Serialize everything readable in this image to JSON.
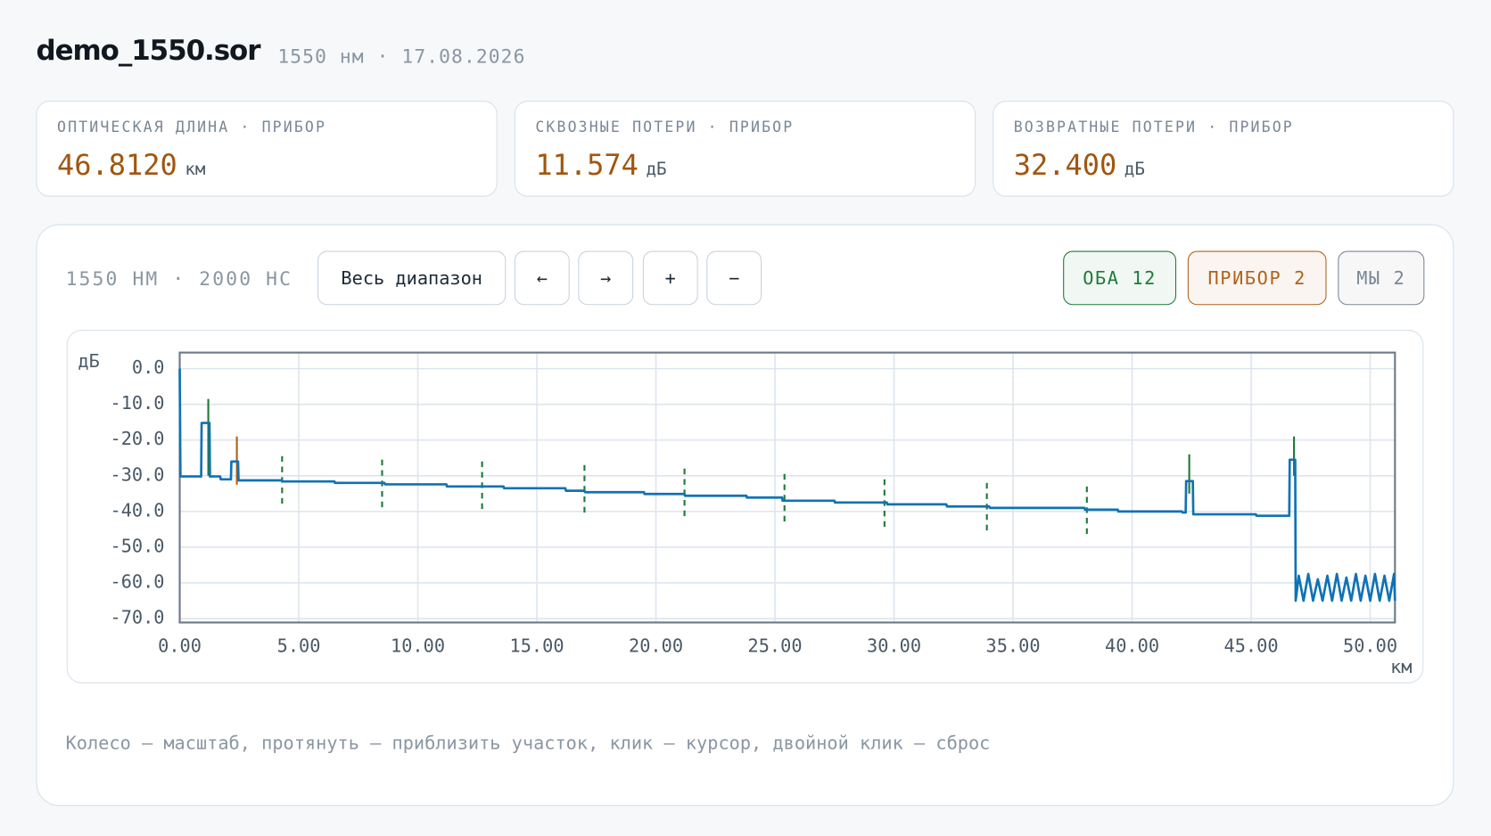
{
  "header": {
    "title": "demo_1550.sor",
    "subtitle": "1550 нм · 17.08.2026"
  },
  "metrics": [
    {
      "label": "ОПТИЧЕСКАЯ ДЛИНА · ПРИБОР",
      "value": "46.8120",
      "unit": "км"
    },
    {
      "label": "СКВОЗНЫЕ ПОТЕРИ · ПРИБОР",
      "value": "11.574",
      "unit": "дБ"
    },
    {
      "label": "ВОЗВРАТНЫЕ ПОТЕРИ · ПРИБОР",
      "value": "32.400",
      "unit": "дБ"
    }
  ],
  "toolbar": {
    "info": "1550 НМ · 2000 НС",
    "buttons": [
      "Весь диапазон",
      "←",
      "→",
      "+",
      "−"
    ],
    "filters": [
      {
        "label": "ОБА 12",
        "color": "#1f7a3a"
      },
      {
        "label": "ПРИБОР 2",
        "color": "#b0621a"
      },
      {
        "label": "МЫ 2",
        "color": "#7a8796"
      }
    ]
  },
  "chart_data": {
    "type": "line",
    "y_label": "дБ",
    "x_label": "км",
    "xlim": [
      0,
      51.04
    ],
    "ylim": [
      -71.1,
      4.5
    ],
    "grid": true,
    "xticks": [
      {
        "value": 0,
        "label": "0.00"
      },
      {
        "value": 5,
        "label": "5.00"
      },
      {
        "value": 10,
        "label": "10.00"
      },
      {
        "value": 15,
        "label": "15.00"
      },
      {
        "value": 20,
        "label": "20.00"
      },
      {
        "value": 25,
        "label": "25.00"
      },
      {
        "value": 30,
        "label": "30.00"
      },
      {
        "value": 35,
        "label": "35.00"
      },
      {
        "value": 40,
        "label": "40.00"
      },
      {
        "value": 45,
        "label": "45.00"
      },
      {
        "value": 50,
        "label": "50.00"
      }
    ],
    "yticks": [
      {
        "value": 0,
        "label": "0.0"
      },
      {
        "value": -10,
        "label": "-10.0"
      },
      {
        "value": -20,
        "label": "-20.0"
      },
      {
        "value": -30,
        "label": "-30.0"
      },
      {
        "value": -40,
        "label": "-40.0"
      },
      {
        "value": -50,
        "label": "-50.0"
      },
      {
        "value": -60,
        "label": "-60.0"
      },
      {
        "value": -70,
        "label": "-70.0"
      }
    ],
    "series": [
      {
        "color": "#0f72b5",
        "x": [
          0,
          0.03,
          0.9,
          0.92,
          1.25,
          1.27,
          1.7,
          1.72,
          2.15,
          2.17,
          2.45,
          2.47,
          4.3,
          4.32,
          6.5,
          6.52,
          8.6,
          8.62,
          11.2,
          11.22,
          13.6,
          13.62,
          16.2,
          16.22,
          17,
          17.02,
          19.5,
          19.52,
          21.2,
          21.22,
          23.8,
          23.82,
          25.3,
          25.32,
          27.5,
          27.52,
          29.7,
          29.72,
          32.2,
          32.22,
          34,
          34.02,
          38,
          38.02,
          39.4,
          39.42,
          42.1,
          42.12,
          42.25,
          42.27,
          42.55,
          42.57,
          45.2,
          45.22,
          46.6,
          46.62,
          46.85,
          46.87,
          47,
          47.2,
          47.4,
          47.6,
          47.8,
          48,
          48.2,
          48.4,
          48.6,
          48.8,
          49,
          49.2,
          49.4,
          49.6,
          49.8,
          50,
          50.2,
          50.4,
          50.6,
          50.8,
          51,
          51.04
        ],
        "values": [
          0,
          -30.2,
          -30.2,
          -15.2,
          -15.2,
          -30.2,
          -30.2,
          -31,
          -31,
          -26,
          -26,
          -31.3,
          -31.3,
          -31.6,
          -31.6,
          -32,
          -32,
          -32.4,
          -32.4,
          -33,
          -33,
          -33.5,
          -33.5,
          -34.2,
          -34.2,
          -34.6,
          -34.6,
          -35.1,
          -35.1,
          -35.6,
          -35.6,
          -36.1,
          -36.1,
          -37,
          -37,
          -37.5,
          -37.5,
          -38,
          -38,
          -38.6,
          -38.6,
          -39,
          -39,
          -39.5,
          -39.5,
          -40,
          -40,
          -40.3,
          -40.3,
          -31.5,
          -31.5,
          -40.8,
          -40.8,
          -41.2,
          -41.2,
          -25.5,
          -25.5,
          -65,
          -58,
          -65,
          -57.5,
          -65,
          -59,
          -65,
          -58,
          -65,
          -57.5,
          -65,
          -58.5,
          -65,
          -57.5,
          -65,
          -58,
          -65,
          -57.5,
          -65,
          -58,
          -65,
          -57.5,
          -65
        ]
      }
    ],
    "events": [
      {
        "x": 1.2,
        "ymax": -8.5,
        "ymin": -30,
        "color": "#1f7a3a",
        "dashed": false
      },
      {
        "x": 2.4,
        "ymax": -19,
        "ymin": -32.5,
        "color": "#b0621a",
        "dashed": false
      },
      {
        "x": 4.3,
        "ymax": -24.5,
        "ymin": -38.5,
        "color": "#1f7a3a",
        "dashed": true
      },
      {
        "x": 8.5,
        "ymax": -25.5,
        "ymin": -39.5,
        "color": "#1f7a3a",
        "dashed": true
      },
      {
        "x": 12.7,
        "ymax": -26,
        "ymin": -40,
        "color": "#1f7a3a",
        "dashed": true
      },
      {
        "x": 17,
        "ymax": -27,
        "ymin": -41,
        "color": "#1f7a3a",
        "dashed": true
      },
      {
        "x": 21.2,
        "ymax": -28,
        "ymin": -42,
        "color": "#1f7a3a",
        "dashed": true
      },
      {
        "x": 25.4,
        "ymax": -29.5,
        "ymin": -43.5,
        "color": "#1f7a3a",
        "dashed": true
      },
      {
        "x": 29.6,
        "ymax": -31,
        "ymin": -45,
        "color": "#1f7a3a",
        "dashed": true
      },
      {
        "x": 33.9,
        "ymax": -32,
        "ymin": -46,
        "color": "#1f7a3a",
        "dashed": true
      },
      {
        "x": 38.1,
        "ymax": -33,
        "ymin": -47,
        "color": "#1f7a3a",
        "dashed": true
      },
      {
        "x": 42.4,
        "ymax": -24,
        "ymin": -35,
        "color": "#1f7a3a",
        "dashed": false
      },
      {
        "x": 46.8,
        "ymax": -19,
        "ymin": -30,
        "color": "#1f7a3a",
        "dashed": false
      }
    ]
  },
  "hint": "Колесо — масштаб, протянуть — приблизить участок, клик — курсор, двойной клик — сброс"
}
